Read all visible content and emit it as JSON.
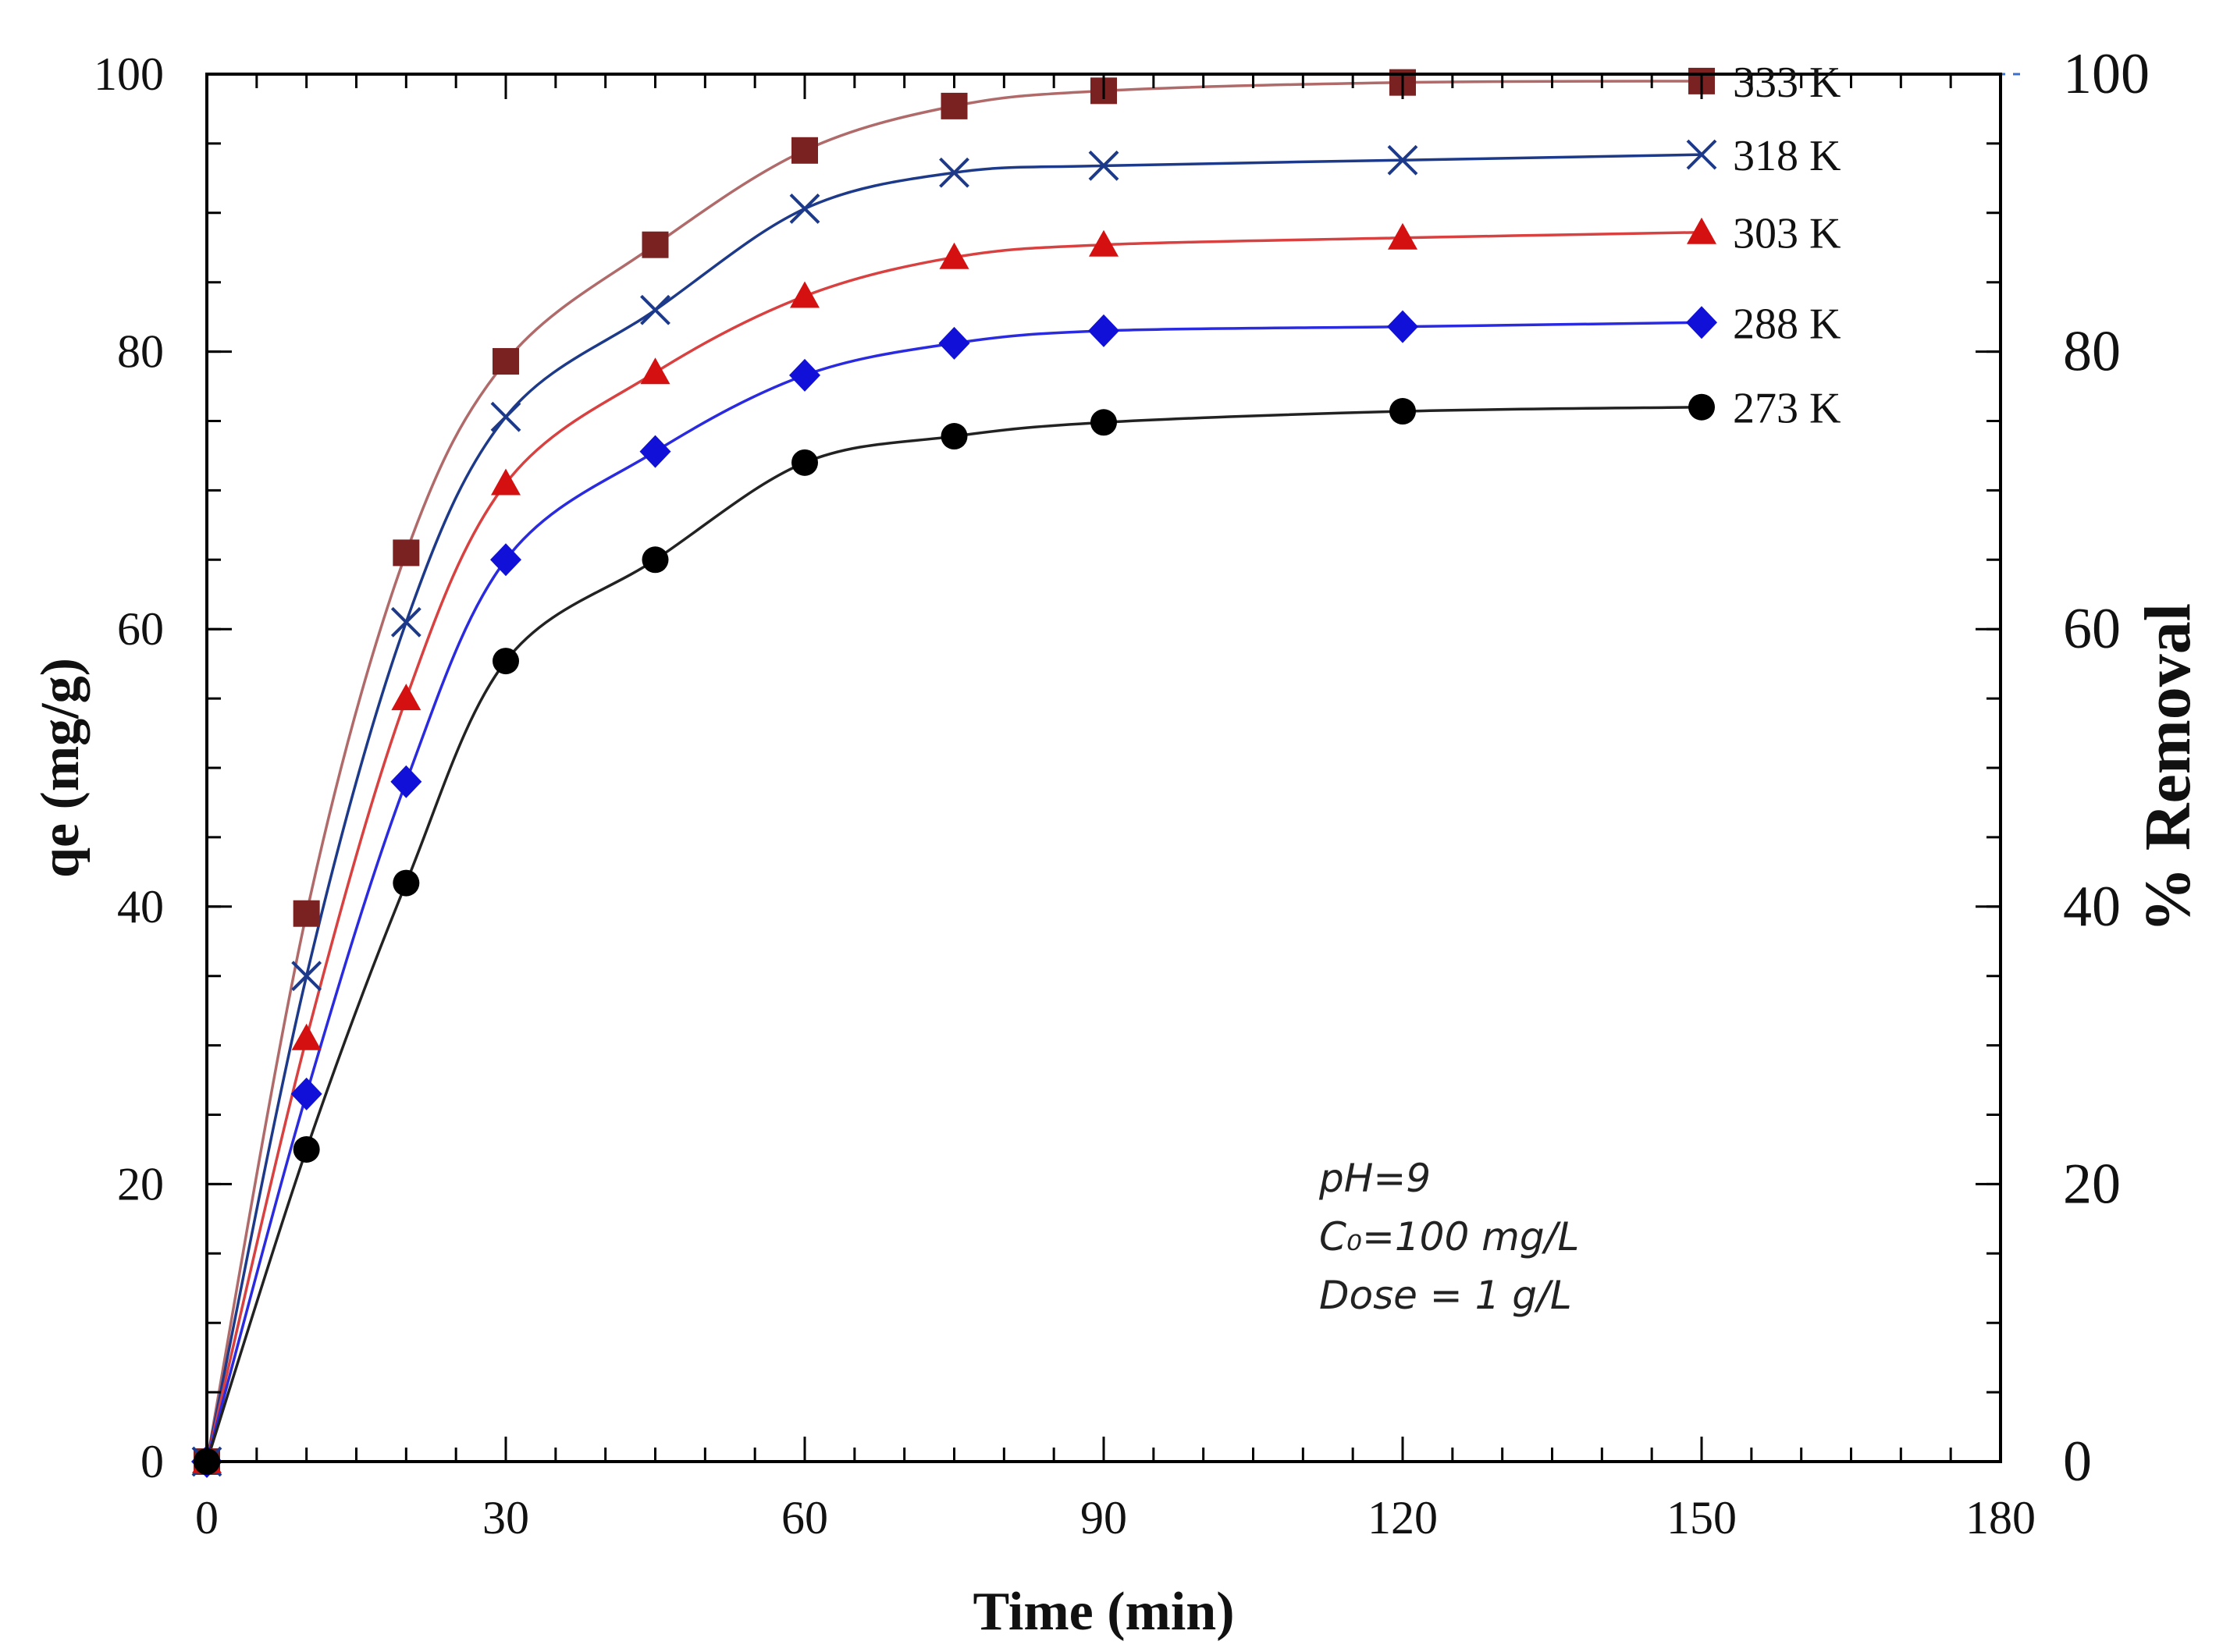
{
  "chart_data": {
    "type": "line",
    "xlabel": "Time (min)",
    "ylabel": "qe (mg/g)",
    "y2label": "% Removal",
    "xlim": [
      0,
      180
    ],
    "ylim": [
      0,
      100
    ],
    "y2lim": [
      0,
      100
    ],
    "xticks": [
      0,
      30,
      60,
      90,
      120,
      150,
      180
    ],
    "yticks": [
      0,
      20,
      40,
      60,
      80,
      100
    ],
    "y2ticks": [
      0,
      20,
      40,
      60,
      80,
      100
    ],
    "x_minor_step": 5,
    "y_minor_step": 5,
    "reference_line": {
      "y": 100,
      "color": "#3a6fd0",
      "style": "dashed"
    },
    "x": [
      0,
      10,
      20,
      30,
      45,
      60,
      75,
      90,
      120,
      150
    ],
    "series": [
      {
        "name": "333 K",
        "marker": "square",
        "color": "#7a2222",
        "line_color": "#b06a6a",
        "values": [
          0,
          39.5,
          65.5,
          79.3,
          87.7,
          94.5,
          97.7,
          98.8,
          99.4,
          99.5
        ]
      },
      {
        "name": "318 K",
        "marker": "x",
        "color": "#1d3a8a",
        "line_color": "#1d3a8a",
        "values": [
          0,
          35.0,
          60.5,
          75.3,
          83.0,
          90.3,
          92.9,
          93.4,
          93.8,
          94.2
        ]
      },
      {
        "name": "303 K",
        "marker": "triangle",
        "color": "#d41010",
        "line_color": "#d94040",
        "values": [
          0,
          30.5,
          55.0,
          70.5,
          78.5,
          84.0,
          86.8,
          87.7,
          88.2,
          88.6
        ]
      },
      {
        "name": "288 K",
        "marker": "diamond",
        "color": "#1010d8",
        "line_color": "#2a2ae0",
        "values": [
          0,
          26.5,
          49.0,
          65.0,
          72.8,
          78.3,
          80.6,
          81.5,
          81.8,
          82.1
        ]
      },
      {
        "name": "273 K",
        "marker": "circle",
        "color": "#000000",
        "line_color": "#222222",
        "values": [
          0,
          22.5,
          41.7,
          57.7,
          65.0,
          72.0,
          73.9,
          74.9,
          75.7,
          76.0
        ]
      }
    ],
    "annotations": [
      "pH=9",
      "C₀=100 mg/L",
      "Dose = 1 g/L"
    ]
  }
}
